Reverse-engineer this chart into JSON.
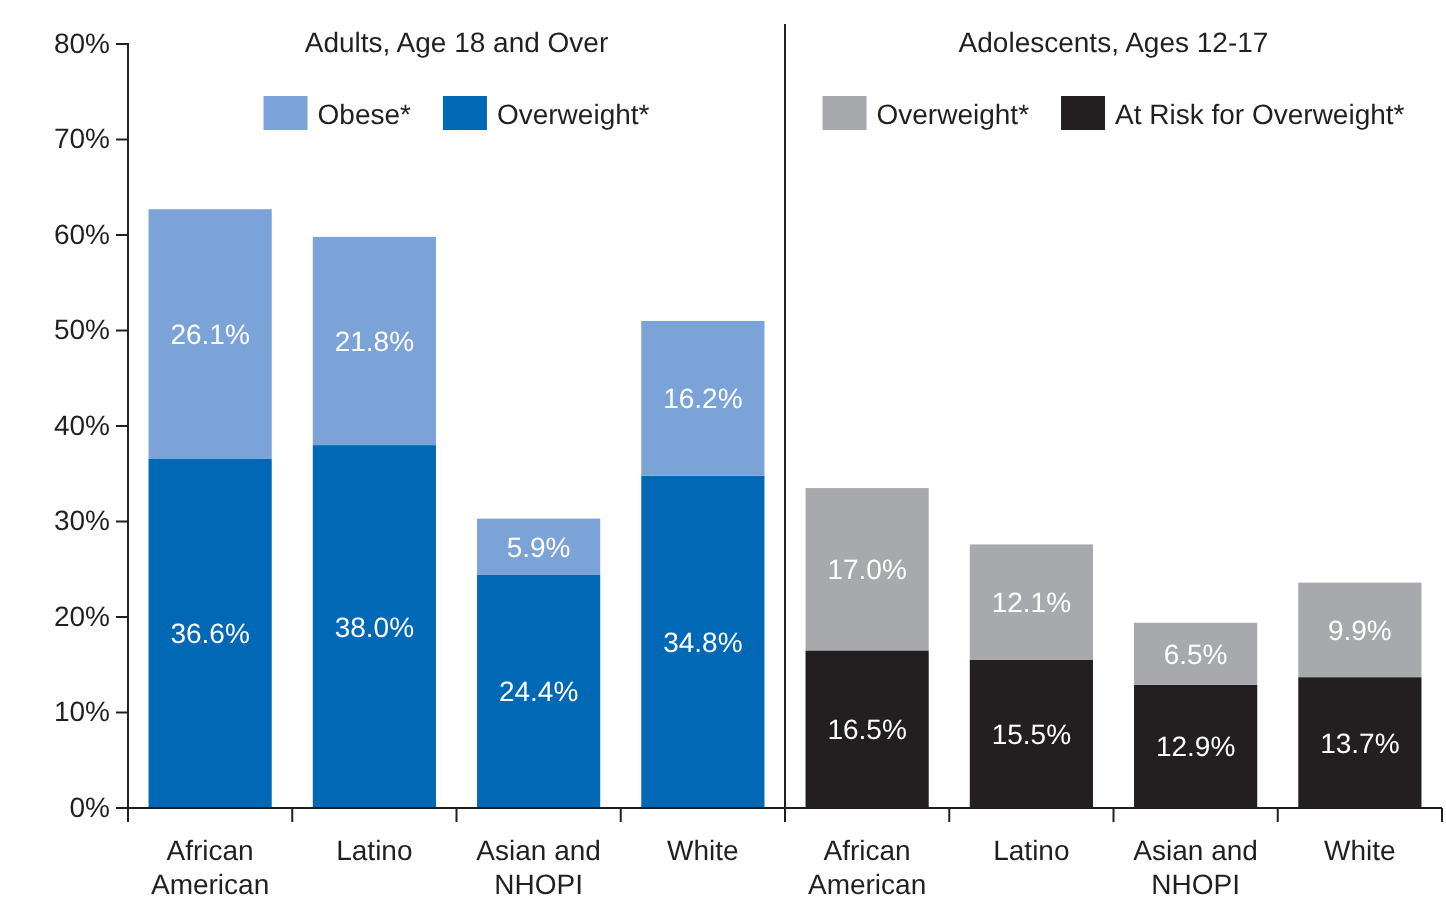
{
  "chart_data": {
    "type": "bar",
    "stacked": true,
    "legend": "top",
    "grid": false,
    "categories": [
      "African American",
      "Latino",
      "Asian and NHOPI",
      "White",
      "African American",
      "Latino",
      "Asian and NHOPI",
      "White"
    ],
    "series": [
      {
        "name": "Overweight*",
        "color": "#0068b4",
        "values": [
          36.6,
          38.0,
          24.4,
          34.8,
          null,
          null,
          null,
          null
        ],
        "value_labels": [
          "36.6%",
          "38.0%",
          "24.4%",
          "34.8%",
          null,
          null,
          null,
          null
        ]
      },
      {
        "name": "Obese*",
        "color": "#7ba3d8",
        "values": [
          26.1,
          21.8,
          5.9,
          16.2,
          null,
          null,
          null,
          null
        ],
        "value_labels": [
          "26.1%",
          "21.8%",
          "5.9%",
          "16.2%",
          null,
          null,
          null,
          null
        ]
      },
      {
        "name": "At Risk for Overweight*",
        "color": "#231f20",
        "values": [
          null,
          null,
          null,
          null,
          16.5,
          15.5,
          12.9,
          13.7
        ],
        "value_labels": [
          null,
          null,
          null,
          null,
          "16.5%",
          "15.5%",
          "12.9%",
          "13.7%"
        ]
      },
      {
        "name": "Overweight*",
        "color": "#a7a9ac",
        "values": [
          null,
          null,
          null,
          null,
          17.0,
          12.1,
          6.5,
          9.9
        ],
        "value_labels": [
          null,
          null,
          null,
          null,
          "17.0%",
          "12.1%",
          "6.5%",
          "9.9%"
        ]
      }
    ],
    "ylim": [
      0,
      80
    ],
    "yticks": [
      {
        "value": 0,
        "label": "0%"
      },
      {
        "value": 10,
        "label": "10%"
      },
      {
        "value": 20,
        "label": "20%"
      },
      {
        "value": 30,
        "label": "30%"
      },
      {
        "value": 40,
        "label": "40%"
      },
      {
        "value": 50,
        "label": "50%"
      },
      {
        "value": 60,
        "label": "60%"
      },
      {
        "value": 70,
        "label": "70%"
      },
      {
        "value": 80,
        "label": "80%"
      }
    ],
    "annotations": [
      "Adults, Age 18 and Over",
      "Adolescents, Ages 12-17"
    ]
  }
}
